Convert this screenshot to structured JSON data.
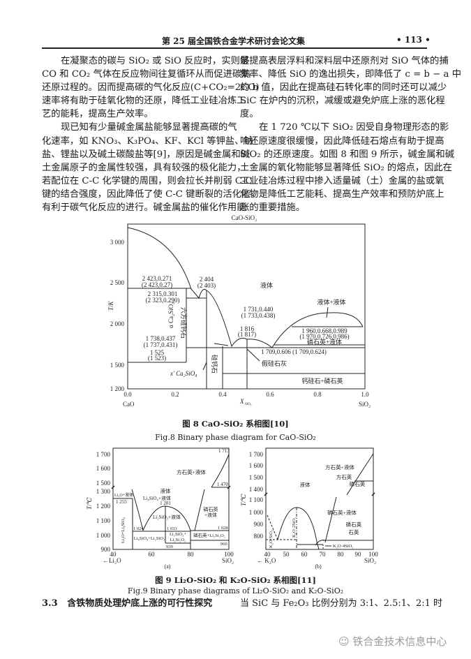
{
  "header": {
    "title": "第 25 届全国铁合金学术研讨会论文集",
    "page_number": "• 113 •"
  },
  "left_column": {
    "p1": [
      "在凝聚态的碳与 SiO₂ 或 SiO 反应时，实则是",
      "CO 和 CO₂ 气体在反应物间往复循环从而促进碳热",
      "还原过程的。因而提高碳的气化反应(C+CO₂=2CO)",
      "速率将有助于硅氧化物的还原，降低工业硅冶炼工",
      "艺的能耗，提高生产效率。"
    ],
    "p2": [
      "现已知有少量碱金属盐能够显著提高碳的气",
      "化速率，如 KNO₃、K₃PO₄、KF、KCl 等钾盐、钠",
      "盐、锂盐以及碱土碳酸盐等[9]，原因是碱金属和碱",
      "土金属原子的金属性较强，具有较强的极化能力，",
      "若配位在 C-C 化学键的周围，则会拉长并削弱 C-C",
      "键的结合强度，因此降低了使 C-C 键断裂的活化能，",
      "有利于碳气化反应的进行。碱金属盐的催化作用能"
    ]
  },
  "right_column": {
    "p1": [
      "够提高表层浮料和深料层中还原剂对 SiO 气体的捕",
      "集率、降低 SiO 的逸出损失，即降低了 c = b − a 中",
      "的 b 值，因此在提高硅石转化率的同时还可以减少",
      "SiC 在炉内的沉积，减缓或避免炉底上涨的恶化程",
      "度。"
    ],
    "p2": [
      "在 1 720 ℃以下 SiO₂ 因受自身物理形态的影",
      "响还原速度很缓慢，因此降低硅石熔点有助于提高",
      "SiO₂ 的还原速度。如图 8 和图 9 所示，碱金属和碱",
      "土金属的氧化物能够显著降低 SiO₂ 的熔点，因此在",
      "工业硅冶炼过程中掺入适量碱（土）金属的盐或氧",
      "化物是降低工艺能耗、提高生产效率和预防炉底上",
      "涨的重要措施。"
    ]
  },
  "fig8": {
    "title": "CaO-SiO₂",
    "y_label": "T/K",
    "y_ticks": [
      "3 000",
      "2 500",
      "2 000",
      "1 500",
      "1 200"
    ],
    "x_ticks": [
      "0.0",
      "0.2",
      "0.4",
      "0.6",
      "0.8",
      "1.0"
    ],
    "x_left": "CaO",
    "x_label": "X",
    "x_label_sub": "SiO₂",
    "x_right": "SiO₂",
    "labels": {
      "a1": "2 423,0.271",
      "a2": "(2 423,0.27)",
      "b1": "2 404",
      "b2": "(2 403)",
      "c1": "2 315,0.301",
      "c2": "(2 323,0.290)",
      "liquid": "液体",
      "liquid_liquid": "液体+液体",
      "d1": "1 731,0.440",
      "d2": "(1 733,0.438)",
      "e1": "1 816",
      "e2": "(1 817)",
      "f1": "1 960,0.668,0.989",
      "f2": "(1 970,0.726,0.986)",
      "f3": "磷石英+液体",
      "g": "1 709,0.606 (1 709,0.624)",
      "h1": "1 738,0.437",
      "h2": "(1 737,0.431)",
      "i1": "1 525",
      "i2": "(1 523)",
      "hex": "六方硅钙石",
      "alpha": "α Ca₂SiO₄",
      "rankinite": "硅钙石",
      "pseudo": "假硅石灰",
      "xprime": "x' Ca₂SiO₄",
      "wollastonite": "钙硅石+磷石英"
    },
    "caption_cn": "图 8 CaO-SiO₂ 系相图[10]",
    "caption_en": "Fig.8 Binary phase diagram for CaO-SiO₂"
  },
  "fig9a": {
    "y_label": "T/℃",
    "y_ticks": [
      "1 700",
      "1 600",
      "1 500",
      "1 300",
      "1 200",
      "1 100",
      "1 000",
      "900"
    ],
    "x_ticks": [
      "40",
      "60",
      "80",
      "100"
    ],
    "x_left": "←Li₂O",
    "x_right": "SiO₂",
    "panel": "(a)",
    "labels": {
      "t1713": "1 713",
      "crist_liq": "方石英+液体",
      "t1470": "1 470",
      "liquid": "液体",
      "li2o_liq": "Li₂O+液体",
      "t1255": "1 255",
      "li4_liq": "Li₄SiO₄+液体",
      "t1201": "1 201",
      "li2_liq": "Li₂SiO₃+液体",
      "trid_liq1": "磷石英",
      "trid_liq2": "+液体",
      "t1024": "1 024",
      "t1033": "1 033",
      "t1028": "1 028",
      "li2o_li4": "Li₂O+Li₄SiO₄",
      "li4_li2": "Li₄SiO₄+Li₂SiO₃",
      "li2_li2si1": "Li₂SiO₃+",
      "li2_li2si2": "Li₂Si₂O₅",
      "t939": "939",
      "trid_li2si": "磷石英+Li₂Si₂O₅",
      "t960": "960"
    }
  },
  "fig9b": {
    "y_label": "T/℃",
    "y_ticks": [
      "1 700",
      "1 600",
      "1 500",
      "1 400",
      "1 100",
      "1 000",
      "900",
      "800"
    ],
    "x_ticks": [
      "40",
      "50",
      "60",
      "70",
      "80",
      "90",
      "100"
    ],
    "x_left": "← K₂O",
    "x_right": "SiO₂",
    "panel": "(b)",
    "labels": {
      "crist_liq": "方石英+液体",
      "crist": "方石英",
      "trid": "磷石英",
      "liquid": "液体",
      "trid_liq": "磷石英+液体",
      "trid2": "磷石英",
      "quartz": "石英",
      "k2o_sio2": "K₂O·SiO₂",
      "k2o_2sio2": "K₂O·2SiO₂",
      "k2o_4sio2": "K₂O·4SiO₂"
    }
  },
  "fig9_caption_cn": "图 9 Li₂O-SiO₂ 和 K₂O-SiO₂ 系相图[11]",
  "fig9_caption_en": "Fig.9 Binary phase diagrams of Li₂O-SiO₂ and K₂O-SiO₂",
  "section": {
    "number": "3.3",
    "title": "含铁物质处理炉底上涨的可行性探究"
  },
  "right_tail": "当 SiC 与 Fe₂O₃ 比例分别为 3:1、2.5:1、2:1 时",
  "watermark": "铁合金技术信息中心"
}
